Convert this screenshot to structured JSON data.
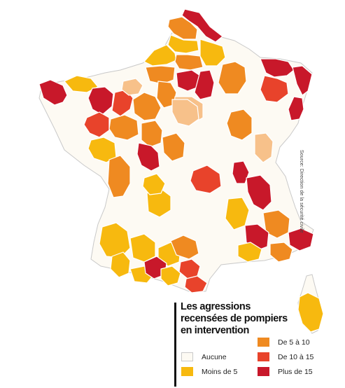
{
  "source_text": "Source: Direction de la sécurité civile",
  "legend": {
    "title_lines": [
      "Les agressions",
      "recensées de pompiers",
      "en intervention"
    ],
    "items": [
      {
        "key": "aucune",
        "label": "Aucune",
        "color": "#fdfaf3"
      },
      {
        "key": "moins5",
        "label": "Moins de 5",
        "color": "#f7b90f"
      },
      {
        "key": "de5a10",
        "label": "De 5 à 10",
        "color": "#ef8a21"
      },
      {
        "key": "de10a15",
        "label": "De 10 à 15",
        "color": "#e8432b"
      },
      {
        "key": "plus15",
        "label": "Plus de 15",
        "color": "#c8182a"
      }
    ]
  },
  "map": {
    "outline_color": "#c9c9c9",
    "extra_colors": {
      "light_orange": "#f7c18a"
    },
    "departments": [
      {
        "id": "nord",
        "category": "plus15"
      },
      {
        "id": "pas-de-calais",
        "category": "de5a10"
      },
      {
        "id": "somme",
        "category": "moins5"
      },
      {
        "id": "aisne",
        "category": "moins5"
      },
      {
        "id": "ardennes",
        "category": "aucune"
      },
      {
        "id": "seine-maritime",
        "category": "moins5"
      },
      {
        "id": "oise",
        "category": "de5a10"
      },
      {
        "id": "marne",
        "category": "de5a10"
      },
      {
        "id": "moselle",
        "category": "plus15"
      },
      {
        "id": "bas-rhin",
        "category": "plus15"
      },
      {
        "id": "eure",
        "category": "de5a10"
      },
      {
        "id": "ile-de-france",
        "category": "plus15"
      },
      {
        "id": "seine-et-marne",
        "category": "plus15"
      },
      {
        "id": "meurthe-et-moselle",
        "category": "de10a15"
      },
      {
        "id": "haut-rhin",
        "category": "plus15"
      },
      {
        "id": "finistere",
        "category": "plus15"
      },
      {
        "id": "cotes-d-armor",
        "category": "moins5"
      },
      {
        "id": "ille-et-vilaine",
        "category": "plus15"
      },
      {
        "id": "mayenne",
        "category": "de10a15"
      },
      {
        "id": "orne",
        "category": "light"
      },
      {
        "id": "loire-atlantique",
        "category": "de10a15"
      },
      {
        "id": "sarthe",
        "category": "de5a10"
      },
      {
        "id": "eure-et-loir",
        "category": "de5a10"
      },
      {
        "id": "loiret",
        "category": "light"
      },
      {
        "id": "vendee",
        "category": "moins5"
      },
      {
        "id": "maine-et-loire",
        "category": "de5a10"
      },
      {
        "id": "indre-et-loire",
        "category": "de5a10"
      },
      {
        "id": "vienne",
        "category": "plus15"
      },
      {
        "id": "cher",
        "category": "de5a10"
      },
      {
        "id": "nievre",
        "category": "light"
      },
      {
        "id": "cote-d-or",
        "category": "de5a10"
      },
      {
        "id": "doubs",
        "category": "light"
      },
      {
        "id": "charente-maritime",
        "category": "de5a10"
      },
      {
        "id": "allier",
        "category": "de10a15"
      },
      {
        "id": "ain",
        "category": "plus15"
      },
      {
        "id": "rhone",
        "category": "plus15"
      },
      {
        "id": "haute-vienne",
        "category": "moins5"
      },
      {
        "id": "puy-de-dome",
        "category": "moins5"
      },
      {
        "id": "isere",
        "category": "moins5"
      },
      {
        "id": "savoie",
        "category": "de5a10"
      },
      {
        "id": "gironde",
        "category": "moins5"
      },
      {
        "id": "lot",
        "category": "moins5"
      },
      {
        "id": "drome",
        "category": "plus15"
      },
      {
        "id": "alpes-maritimes",
        "category": "plus15"
      },
      {
        "id": "landes",
        "category": "moins5"
      },
      {
        "id": "tarn-et-garonne",
        "category": "moins5"
      },
      {
        "id": "aveyron",
        "category": "de5a10"
      },
      {
        "id": "gard",
        "category": "moins5"
      },
      {
        "id": "var",
        "category": "de5a10"
      },
      {
        "id": "pyrenees-atlantiques",
        "category": "moins5"
      },
      {
        "id": "haute-garonne",
        "category": "plus15"
      },
      {
        "id": "herault",
        "category": "de10a15"
      },
      {
        "id": "aude",
        "category": "moins5"
      },
      {
        "id": "pyrenees-orientales",
        "category": "de10a15"
      },
      {
        "id": "corse",
        "category": "moins5"
      }
    ]
  }
}
